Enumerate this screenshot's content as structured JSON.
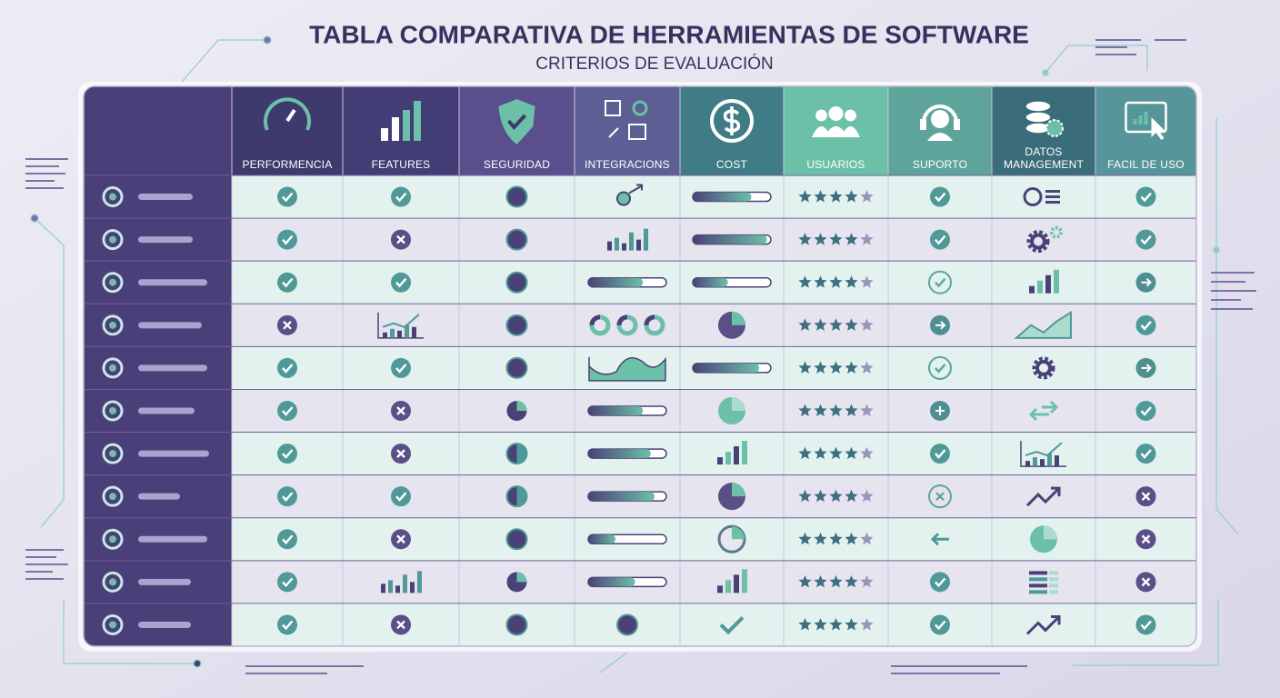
{
  "header": {
    "title": "TABLA COMPARATIVA DE HERRAMIENTAS DE SOFTWARE",
    "subtitle": "CRITERIOS DE EVALUACIÓN"
  },
  "table": {
    "columns": [
      "PERFORMENCIA",
      "FEATURES",
      "SEGURIDAD",
      "INTEGRACIONS",
      "COST",
      "USUARIOS",
      "SUPORTO",
      "DATOS MANAGEMENT",
      "FACIL DE USO"
    ]
  }
}
